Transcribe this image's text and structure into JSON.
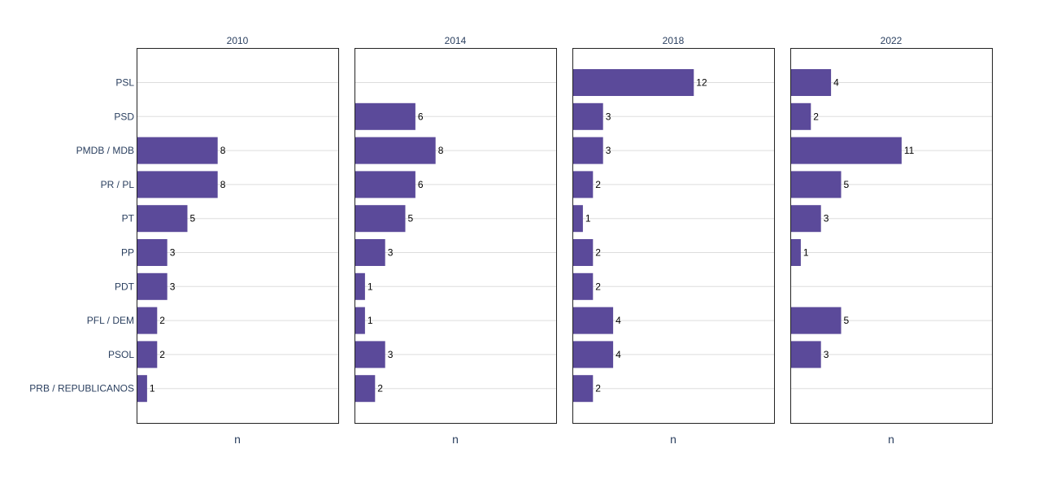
{
  "chart_data": {
    "type": "bar",
    "orientation": "horizontal",
    "facet_by": "year",
    "categories": [
      "PSL",
      "PSD",
      "PMDB / MDB",
      "PR / PL",
      "PT",
      "PP",
      "PDT",
      "PFL / DEM",
      "PSOL",
      "PRB / REPUBLICANOS"
    ],
    "series": [
      {
        "name": "2010",
        "values": [
          null,
          null,
          8,
          8,
          5,
          3,
          3,
          2,
          2,
          1
        ]
      },
      {
        "name": "2014",
        "values": [
          null,
          6,
          8,
          6,
          5,
          3,
          1,
          1,
          3,
          2
        ]
      },
      {
        "name": "2018",
        "values": [
          12,
          3,
          3,
          2,
          1,
          2,
          2,
          4,
          4,
          2
        ]
      },
      {
        "name": "2022",
        "values": [
          4,
          2,
          11,
          5,
          3,
          1,
          null,
          5,
          3,
          null
        ]
      }
    ],
    "xlabel": "n",
    "xlim": [
      0,
      20
    ],
    "bar_color": "#5b4a9a",
    "grid": true
  }
}
